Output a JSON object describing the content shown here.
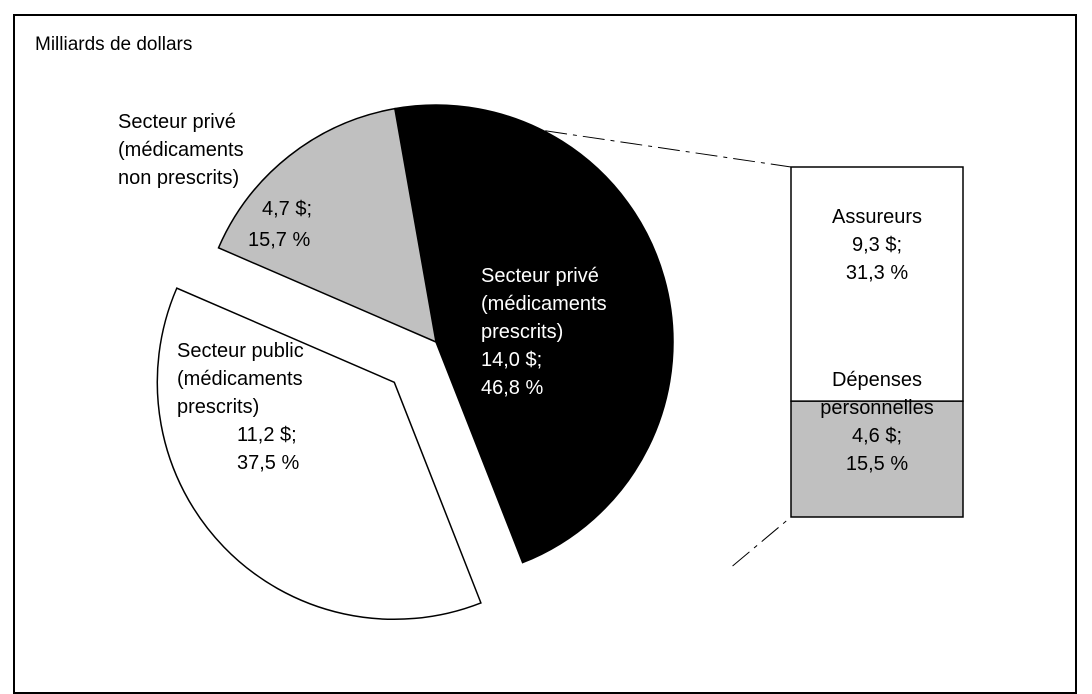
{
  "unit_label": "Milliards de dollars",
  "chart_data": {
    "type": "pie",
    "subtitle": "Milliards de dollars",
    "slices": [
      {
        "label_lines": [
          "Secteur privé",
          "(médicaments",
          "prescrits)"
        ],
        "value_text": "14,0 $;",
        "pct_text": "46,8 %",
        "value": 14.0,
        "percent": 46.8,
        "color": "#000000",
        "text_color": "#ffffff",
        "exploded": false
      },
      {
        "label_lines": [
          "Secteur public",
          "(médicaments",
          "prescrits)"
        ],
        "value_text": "11,2 $;",
        "pct_text": "37,5 %",
        "value": 11.2,
        "percent": 37.5,
        "color": "#ffffff",
        "text_color": "#000000",
        "exploded": true
      },
      {
        "label_lines": [
          "Secteur privé",
          "(médicaments",
          "non prescrits)"
        ],
        "value_text": "4,7 $;",
        "pct_text": "15,7 %",
        "value": 4.7,
        "percent": 15.7,
        "color": "#c0c0c0",
        "text_color": "#000000",
        "exploded": false
      }
    ],
    "breakdown_of": "Secteur privé (médicaments prescrits)",
    "breakdown": [
      {
        "label_lines": [
          "Assureurs"
        ],
        "value_text": "9,3 $;",
        "pct_text": "31,3 %",
        "value": 9.3,
        "percent": 31.3,
        "color": "#ffffff"
      },
      {
        "label_lines": [
          "Dépenses",
          "personnelles"
        ],
        "value_text": "4,6 $;",
        "pct_text": "15,5 %",
        "value": 4.6,
        "percent": 15.5,
        "color": "#c0c0c0"
      }
    ]
  }
}
